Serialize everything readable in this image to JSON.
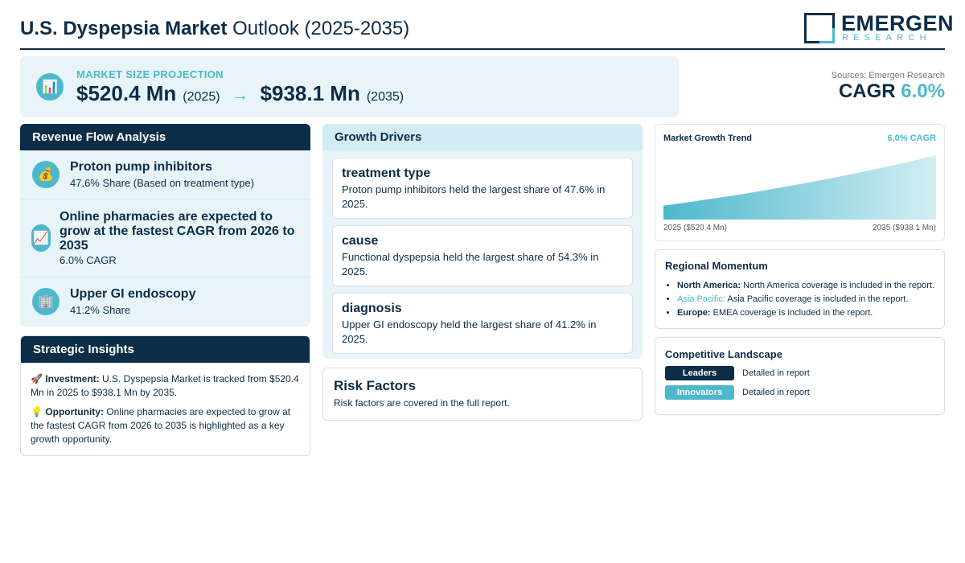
{
  "header": {
    "title_bold": "U.S. Dyspepsia Market",
    "title_rest": "Outlook (2025-2035)",
    "logo_word": "EMERGEN",
    "logo_sub": "RESEARCH"
  },
  "projection": {
    "label": "MARKET SIZE PROJECTION",
    "start_value": "$520.4 Mn",
    "start_year": "(2025)",
    "arrow": "→",
    "end_value": "$938.1 Mn",
    "end_year": "(2035)",
    "icon": "bar-chart-icon"
  },
  "sources": "Sources: Emergen Research",
  "cagr": {
    "label": "CAGR",
    "value": "6.0%"
  },
  "revenue_flow": {
    "heading": "Revenue Flow Analysis",
    "items": [
      {
        "icon": "money-bag-icon",
        "title": "Proton pump inhibitors",
        "sub": "47.6% Share (Based on treatment type)"
      },
      {
        "icon": "chart-increasing-icon",
        "title": "Online pharmacies are expected to grow at the fastest CAGR from 2026 to 2035",
        "sub": "6.0% CAGR"
      },
      {
        "icon": "building-icon",
        "title": "Upper GI endoscopy",
        "sub": "41.2% Share"
      }
    ]
  },
  "insights": {
    "heading": "Strategic Insights",
    "investment_label": "Investment:",
    "investment_text": "U.S. Dyspepsia Market is tracked from $520.4 Mn in 2025 to $938.1 Mn by 2035.",
    "opportunity_label": "Opportunity:",
    "opportunity_text": "Online pharmacies are expected to grow at the fastest CAGR from 2026 to 2035 is highlighted as a key growth opportunity."
  },
  "drivers": {
    "heading": "Growth Drivers",
    "cards": [
      {
        "title": "treatment type",
        "text": "Proton pump inhibitors held the largest share of 47.6% in 2025."
      },
      {
        "title": "cause",
        "text": "Functional dyspepsia held the largest share of 54.3% in 2025."
      },
      {
        "title": "diagnosis",
        "text": "Upper GI endoscopy held the largest share of 41.2% in 2025."
      }
    ]
  },
  "risk": {
    "title": "Risk Factors",
    "text": "Risk factors are covered in the full report."
  },
  "trend": {
    "title": "Market Growth Trend",
    "cagr": "6.0% CAGR",
    "start_label": "2025 ($520.4 Mn)",
    "end_label": "2035 ($938.1 Mn)"
  },
  "chart_data": {
    "type": "area",
    "title": "Market Growth Trend",
    "x": [
      2025,
      2035
    ],
    "values": [
      520.4,
      938.1
    ],
    "unit": "USD Mn",
    "grid": false
  },
  "regional": {
    "title": "Regional Momentum",
    "items": [
      {
        "name": "North America:",
        "text": "North America coverage is included in the report."
      },
      {
        "name": "Asia Pacific:",
        "text": "Asia Pacific coverage is included in the report."
      },
      {
        "name": "Europe:",
        "text": "EMEA coverage is included in the report."
      }
    ]
  },
  "competitive": {
    "title": "Competitive Landscape",
    "rows": [
      {
        "badge": "Leaders",
        "desc": "Detailed in report",
        "color": "#0c2d48"
      },
      {
        "badge": "Innovators",
        "desc": "Detailed in report",
        "color": "#4db8cc"
      }
    ]
  },
  "colors": {
    "navy": "#0c2d48",
    "cyan": "#4db8cc",
    "panel_bg": "#e8f4f7"
  }
}
